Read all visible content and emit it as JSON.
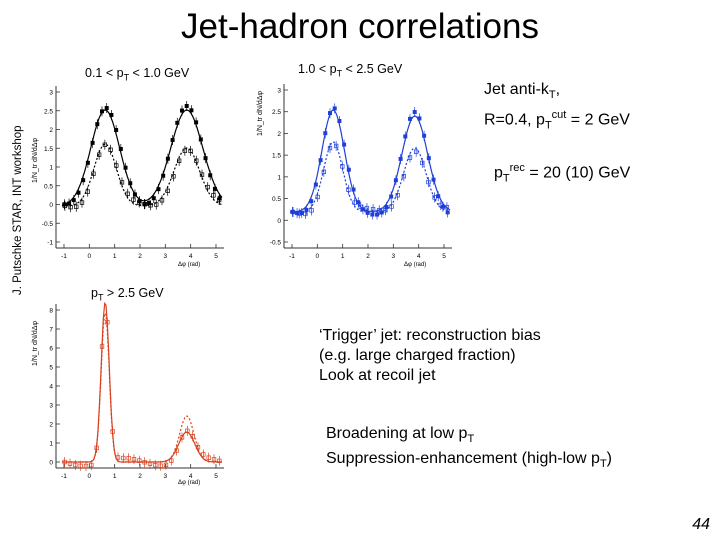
{
  "slide": {
    "title": "Jet-hadron correlations",
    "side_credit": "J. Putschke STAR, INT workshop",
    "page_number": "44"
  },
  "plots": {
    "y_axis_label": "1/N_tr dN/dΔφ",
    "x_axis_label": "Δφ (rad)",
    "panel1": {
      "label_prefix": "0.1 < p",
      "label_sub": "T",
      "label_suffix": " < 1.0 GeV",
      "y_ticks": [
        "-1",
        "-0.5",
        "0",
        "0.5",
        "1",
        "1.5",
        "2",
        "2.5",
        "3"
      ],
      "x_ticks": [
        "-1",
        "0",
        "1",
        "2",
        "3",
        "4",
        "5"
      ]
    },
    "panel2": {
      "label_prefix": "1.0 < p",
      "label_sub": "T",
      "label_suffix": " < 2.5 GeV",
      "y_ticks": [
        "-0.5",
        "0",
        "0.5",
        "1",
        "1.5",
        "2",
        "2.5",
        "3"
      ],
      "x_ticks": [
        "-1",
        "0",
        "1",
        "2",
        "3",
        "4",
        "5"
      ]
    },
    "panel3": {
      "label_prefix": "p",
      "label_sub": "T",
      "label_suffix": " > 2.5 GeV",
      "y_ticks": [
        "0",
        "1",
        "2",
        "3",
        "4",
        "5",
        "6",
        "7",
        "8"
      ],
      "x_ticks": [
        "-1",
        "0",
        "1",
        "2",
        "3",
        "4",
        "5"
      ]
    },
    "colors": {
      "panel1": "#000000",
      "panel2": "#1f3fd8",
      "panel3": "#d9411e"
    }
  },
  "jet_info": {
    "line1": "Jet anti-k",
    "line1_sub": "T",
    "line1_end": ",",
    "line2_prefix": "R=0.4, p",
    "line2_sub": "T",
    "line2_sup": "cut",
    "line2_suffix": " = 2 GeV",
    "ptrec_prefix": "p",
    "ptrec_sub": "T",
    "ptrec_sup": "rec",
    "ptrec_suffix": " = 20 (10) GeV"
  },
  "trigger_note": {
    "line1": "‘Trigger’ jet: reconstruction bias",
    "line2": "(e.g. large charged fraction)",
    "line3": "Look at recoil jet"
  },
  "broadening_note": {
    "line1_prefix": "Broadening at low p",
    "line1_sub": "T",
    "line2_prefix": "Suppression-enhancement (high-low p",
    "line2_sub": "T",
    "line2_suffix": ")"
  }
}
